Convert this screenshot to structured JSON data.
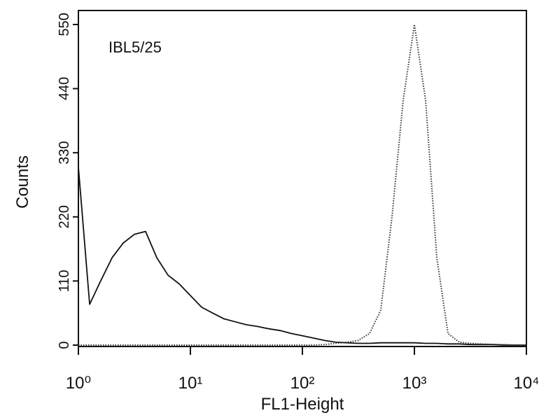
{
  "chart_data": {
    "type": "line",
    "annotation": "IBL5/25",
    "x_label": "FL1-Height",
    "y_label": "Counts",
    "xscale": "log",
    "xlim": [
      1,
      10000
    ],
    "ylim": [
      0,
      574
    ],
    "xticks": [
      {
        "value": 1,
        "label": "10⁰"
      },
      {
        "value": 10,
        "label": "10¹"
      },
      {
        "value": 100,
        "label": "10²"
      },
      {
        "value": 1000,
        "label": "10³"
      },
      {
        "value": 10000,
        "label": "10⁴"
      }
    ],
    "yticks": [
      0,
      110,
      220,
      330,
      440,
      550
    ],
    "x": [
      1,
      1.26,
      1.58,
      2,
      2.51,
      3.16,
      3.98,
      5.01,
      6.31,
      7.94,
      10,
      12.6,
      15.8,
      20,
      25.1,
      31.6,
      39.8,
      50.1,
      63.1,
      79.4,
      100,
      126,
      158,
      200,
      251,
      316,
      398,
      501,
      631,
      794,
      1000,
      1259,
      1585,
      1995,
      2512,
      3162,
      3981,
      5012,
      6310,
      7943,
      10000
    ],
    "series": [
      {
        "color": "#111111",
        "style": "solid",
        "values": [
          305,
          70,
          110,
          150,
          175,
          190,
          195,
          150,
          120,
          105,
          85,
          65,
          55,
          45,
          40,
          35,
          32,
          28,
          25,
          20,
          16,
          12,
          8,
          5,
          4,
          3,
          3,
          4,
          4,
          4,
          4,
          3,
          3,
          2,
          2,
          1,
          1,
          1,
          0,
          0,
          0
        ]
      },
      {
        "color": "#333333",
        "style": "dotted",
        "values": [
          0,
          0,
          0,
          0,
          0,
          0,
          0,
          0,
          0,
          0,
          0,
          0,
          0,
          0,
          0,
          0,
          0,
          0,
          0,
          0,
          0,
          0,
          1,
          3,
          5,
          8,
          20,
          60,
          220,
          420,
          550,
          420,
          150,
          20,
          5,
          3,
          2,
          1,
          1,
          0,
          0
        ]
      }
    ]
  }
}
